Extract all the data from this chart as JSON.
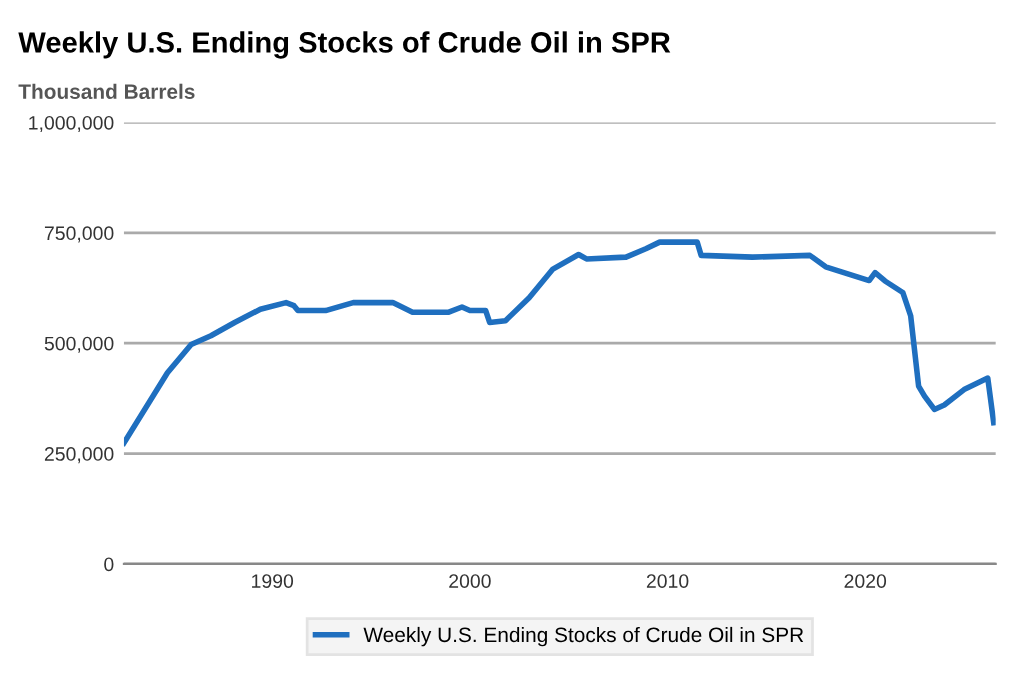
{
  "chart_data": {
    "type": "line",
    "title": "Weekly U.S. Ending Stocks of Crude Oil in SPR",
    "ylabel": "Thousand Barrels",
    "x": [
      1982.5,
      1984.7,
      1985.9,
      1986.9,
      1988.1,
      1989.4,
      1990.7,
      1991.1,
      1991.3,
      1992.7,
      1994.1,
      1996.1,
      1997.1,
      1998.9,
      1999.6,
      2000.0,
      2000.8,
      2001.0,
      2001.8,
      2003.0,
      2004.2,
      2005.5,
      2005.9,
      2007.9,
      2008.9,
      2009.6,
      2011.5,
      2011.7,
      2014.3,
      2017.2,
      2018.0,
      2020.2,
      2020.5,
      2021.0,
      2021.9,
      2022.3,
      2022.7,
      2023.0,
      2023.5,
      2024.0,
      2025.0,
      2026.2,
      2026.5
    ],
    "series": [
      {
        "name": "Weekly U.S. Ending Stocks of Crude Oil in SPR",
        "color": "#1f6fbf",
        "values": [
          274000,
          433000,
          497000,
          517000,
          547000,
          577000,
          592000,
          585000,
          574000,
          574000,
          592000,
          592000,
          570000,
          570000,
          582000,
          574000,
          574000,
          547000,
          551000,
          603000,
          668000,
          701000,
          691000,
          695000,
          714000,
          729000,
          729000,
          699000,
          695000,
          699000,
          673000,
          642000,
          660000,
          641000,
          615000,
          562000,
          403000,
          380000,
          350000,
          360000,
          395000,
          421000,
          320000
        ]
      }
    ],
    "xlim": [
      1982.5,
      2026.6
    ],
    "xticks": [
      1990,
      2000,
      2010,
      2020
    ],
    "ylim": [
      0,
      1000000
    ],
    "yticks": [
      {
        "value": 0,
        "label": "0"
      },
      {
        "value": 250000,
        "label": "250,000"
      },
      {
        "value": 500000,
        "label": "500,000"
      },
      {
        "value": 750000,
        "label": "750,000"
      },
      {
        "value": 1000000,
        "label": "1,000,000"
      }
    ],
    "grid": "y",
    "legend": "bottom",
    "marker": "none",
    "line_style": "solid"
  }
}
